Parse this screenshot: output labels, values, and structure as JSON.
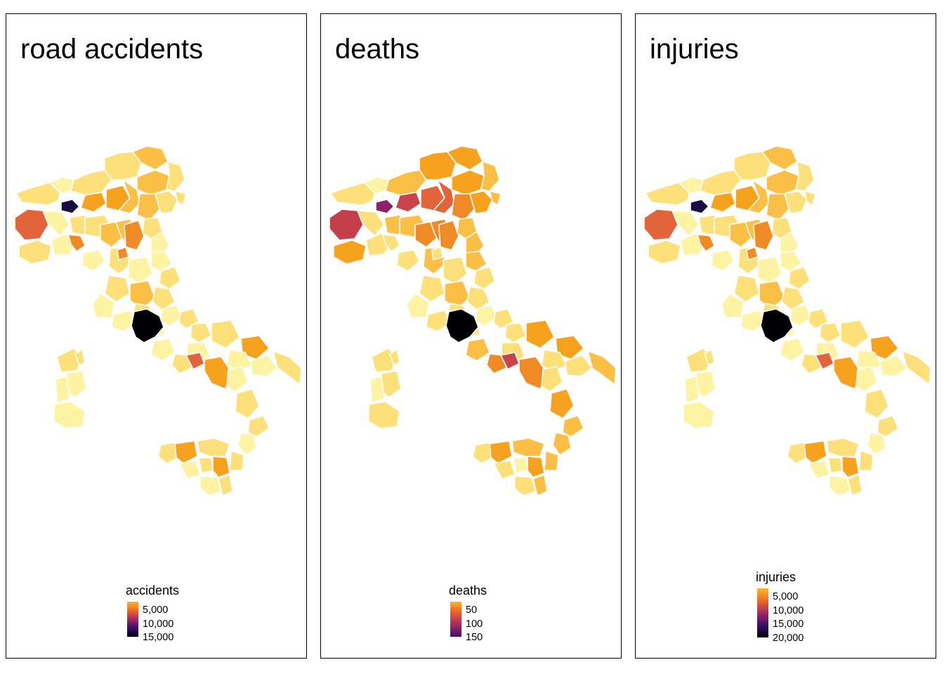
{
  "panels": [
    {
      "title": "road accidents",
      "legend": {
        "title": "accidents",
        "labels": [
          "5,000",
          "10,000",
          "15,000"
        ],
        "colors": [
          "#fcb72a",
          "#ed6a25",
          "#9f2a63",
          "#3b0f6f",
          "#000004"
        ]
      }
    },
    {
      "title": "deaths",
      "legend": {
        "title": "deaths",
        "labels": [
          "50",
          "100",
          "150"
        ],
        "colors": [
          "#fcb72a",
          "#ef6c22",
          "#c43e4b",
          "#8a226a",
          "#3b0f6f"
        ]
      }
    },
    {
      "title": "injuries",
      "legend": {
        "title": "injuries",
        "labels": [
          "5,000",
          "10,000",
          "15,000",
          "20,000"
        ],
        "colors": [
          "#fcb72a",
          "#ed6a25",
          "#9f2a63",
          "#3b0f6f",
          "#000004"
        ]
      }
    }
  ],
  "palette": {
    "pale": "#fdf3a3",
    "light": "#fde07a",
    "mid": "#fbbf45",
    "orange": "#f6a21e",
    "deep": "#f08a25",
    "red": "#e2643a",
    "border": "#ffffff"
  }
}
